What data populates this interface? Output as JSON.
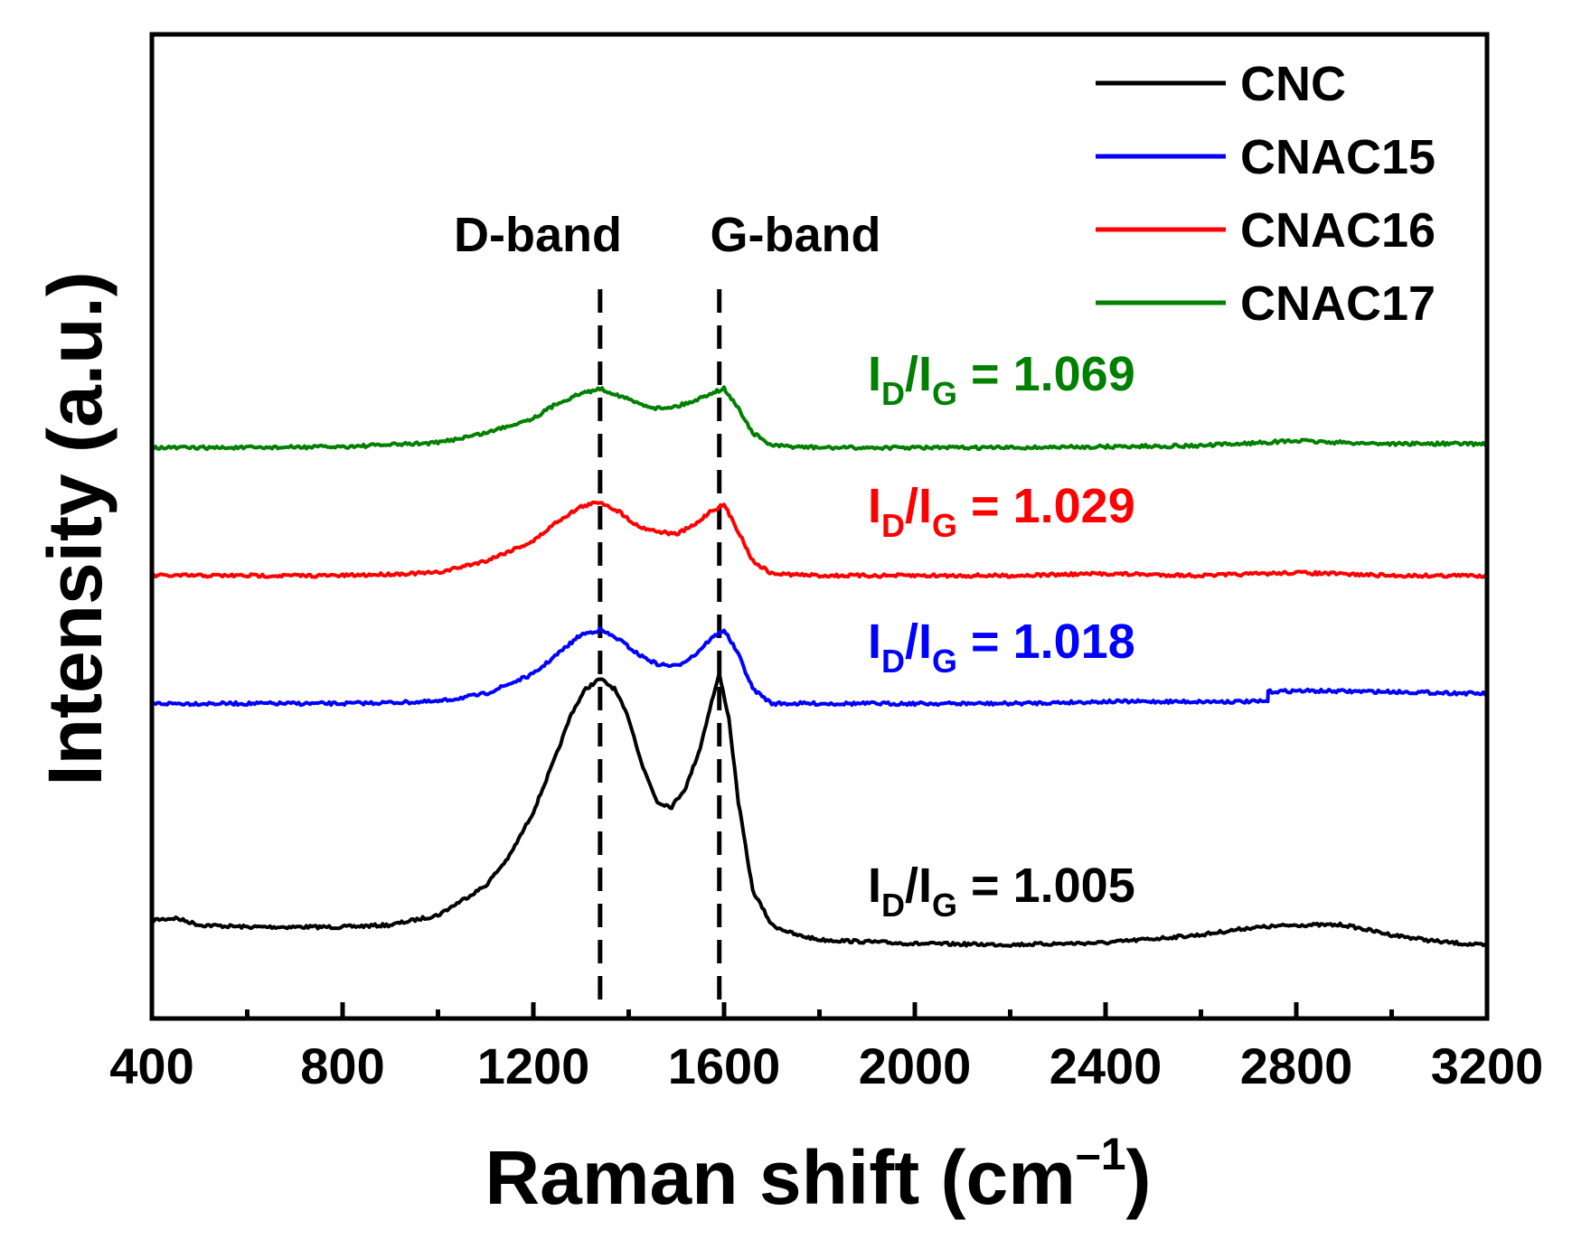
{
  "chart_data": {
    "type": "line",
    "title": "",
    "xlabel": "Raman shift (cm",
    "xlabel_sup": "–1",
    "xlabel_close": ")",
    "ylabel": "Intensity (a.u.)",
    "xlim": [
      400,
      3200
    ],
    "ylim": [
      0,
      10
    ],
    "x_ticks": [
      400,
      800,
      1200,
      1600,
      2000,
      2400,
      2800,
      3200
    ],
    "x_minor_ticks": [
      600,
      1000,
      1400,
      1800,
      2200,
      2600,
      3000
    ],
    "y_ticks_shown": false,
    "legend_position": "top-right",
    "annotations": {
      "d_band": {
        "label": "D-band",
        "x": 1340
      },
      "g_band": {
        "label": "G-band",
        "x": 1590
      }
    },
    "series": [
      {
        "name": "CNC",
        "color": "#000000",
        "ratio_label": {
          "prefix": "I",
          "sub1": "D",
          "mid": "/I",
          "sub2": "G",
          "value": " = 1.005"
        },
        "baseline": 0.9,
        "x": [
          400,
          450,
          500,
          600,
          700,
          800,
          900,
          1000,
          1100,
          1150,
          1200,
          1250,
          1280,
          1310,
          1340,
          1370,
          1400,
          1430,
          1460,
          1490,
          1520,
          1550,
          1570,
          1590,
          1610,
          1630,
          1660,
          1700,
          1750,
          1800,
          1900,
          2000,
          2200,
          2400,
          2600,
          2700,
          2800,
          2900,
          3000,
          3100,
          3200
        ],
        "y": [
          1.0,
          1.02,
          0.95,
          0.93,
          0.93,
          0.93,
          0.95,
          1.05,
          1.35,
          1.65,
          2.1,
          2.7,
          3.1,
          3.35,
          3.45,
          3.35,
          3.05,
          2.55,
          2.2,
          2.15,
          2.35,
          2.75,
          3.15,
          3.5,
          3.05,
          2.2,
          1.3,
          0.95,
          0.85,
          0.8,
          0.78,
          0.76,
          0.75,
          0.77,
          0.85,
          0.92,
          0.95,
          0.95,
          0.85,
          0.78,
          0.74
        ]
      },
      {
        "name": "CNAC15",
        "color": "#0000ff",
        "ratio_label": {
          "prefix": "I",
          "sub1": "D",
          "mid": "/I",
          "sub2": "G",
          "value": " = 1.018"
        },
        "x": [
          400,
          600,
          800,
          1000,
          1100,
          1200,
          1250,
          1300,
          1340,
          1380,
          1420,
          1460,
          1500,
          1540,
          1570,
          1600,
          1630,
          1660,
          1700,
          1800,
          2000,
          2200,
          2400,
          2600,
          2740,
          2741,
          2800,
          3000,
          3200
        ],
        "y": [
          3.2,
          3.2,
          3.2,
          3.22,
          3.3,
          3.5,
          3.7,
          3.9,
          3.95,
          3.85,
          3.7,
          3.6,
          3.58,
          3.7,
          3.85,
          3.95,
          3.7,
          3.35,
          3.2,
          3.2,
          3.2,
          3.2,
          3.22,
          3.22,
          3.22,
          3.32,
          3.33,
          3.32,
          3.3
        ]
      },
      {
        "name": "CNAC16",
        "color": "#ff0000",
        "ratio_label": {
          "prefix": "I",
          "sub1": "D",
          "mid": "/I",
          "sub2": "G",
          "value": " = 1.029"
        },
        "x": [
          400,
          600,
          800,
          1000,
          1100,
          1200,
          1250,
          1300,
          1340,
          1380,
          1420,
          1460,
          1500,
          1540,
          1570,
          1600,
          1630,
          1660,
          1700,
          1800,
          2000,
          2200,
          2400,
          2600,
          2800,
          3000,
          3200
        ],
        "y": [
          4.5,
          4.5,
          4.5,
          4.53,
          4.65,
          4.85,
          5.05,
          5.2,
          5.25,
          5.15,
          5.0,
          4.95,
          4.92,
          5.02,
          5.15,
          5.22,
          4.95,
          4.65,
          4.52,
          4.5,
          4.5,
          4.5,
          4.52,
          4.5,
          4.53,
          4.5,
          4.5
        ]
      },
      {
        "name": "CNAC17",
        "color": "#008000",
        "ratio_label": {
          "prefix": "I",
          "sub1": "D",
          "mid": "/I",
          "sub2": "G",
          "value": " = 1.069"
        },
        "x": [
          400,
          600,
          800,
          1000,
          1100,
          1200,
          1250,
          1300,
          1340,
          1380,
          1420,
          1460,
          1500,
          1540,
          1570,
          1600,
          1630,
          1660,
          1700,
          1800,
          2000,
          2200,
          2400,
          2600,
          2800,
          2900,
          3000,
          3200
        ],
        "y": [
          5.8,
          5.8,
          5.81,
          5.85,
          5.95,
          6.1,
          6.25,
          6.35,
          6.4,
          6.33,
          6.25,
          6.2,
          6.22,
          6.28,
          6.35,
          6.4,
          6.2,
          5.95,
          5.82,
          5.8,
          5.8,
          5.8,
          5.81,
          5.82,
          5.87,
          5.85,
          5.84,
          5.84
        ]
      }
    ]
  }
}
